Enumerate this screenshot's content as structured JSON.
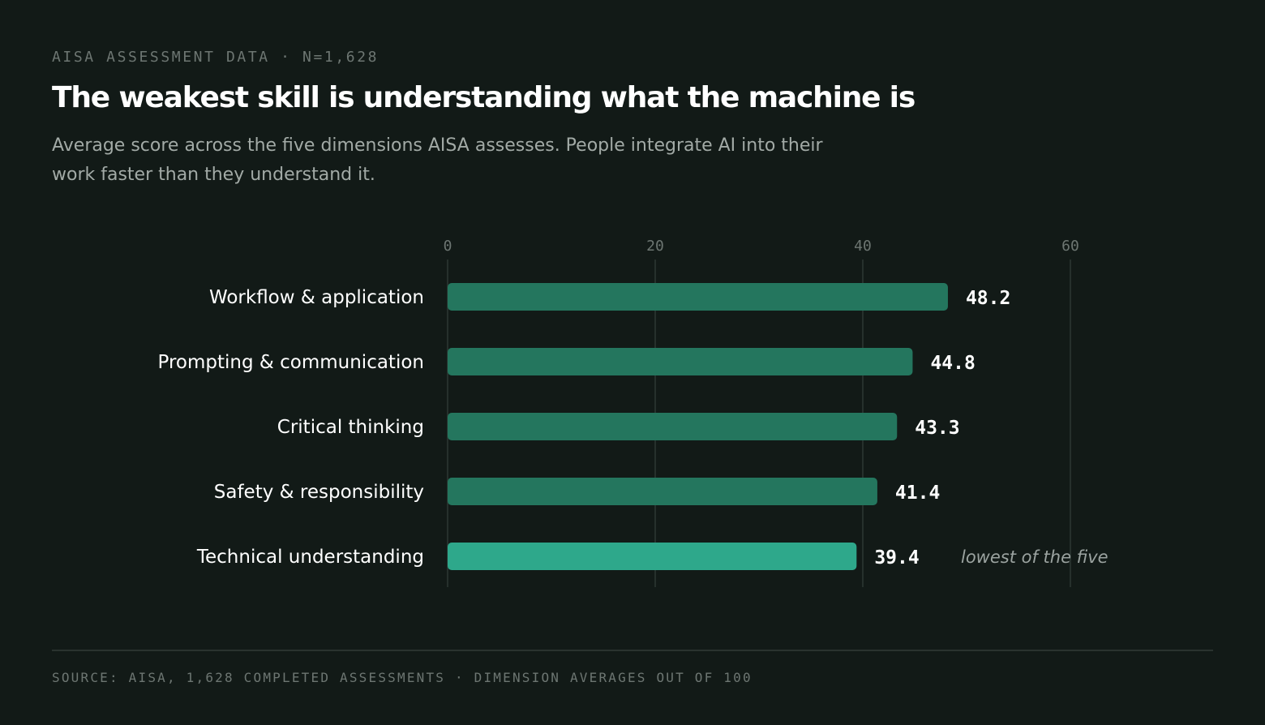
{
  "header": {
    "kicker": "AISA ASSESSMENT DATA · N=1,628",
    "title": "The weakest skill is understanding what the machine is",
    "subtitle": "Average score across the five dimensions AISA assesses. People integrate AI into their work faster than they understand it."
  },
  "chart_data": {
    "type": "bar",
    "orientation": "horizontal",
    "categories": [
      "Workflow & application",
      "Prompting & communication",
      "Critical thinking",
      "Safety & responsibility",
      "Technical understanding"
    ],
    "values": [
      48.2,
      44.8,
      43.3,
      41.4,
      39.4
    ],
    "value_labels": [
      "48.2",
      "44.8",
      "43.3",
      "41.4",
      "39.4"
    ],
    "xticks": [
      "0",
      "20",
      "40",
      "60"
    ],
    "xlim": [
      0,
      60
    ],
    "grid": true,
    "annotation": {
      "category": "Technical understanding",
      "text": "lowest of the five"
    },
    "colors": {
      "bar": "#24765e",
      "highlight": "#2ea88b",
      "grid": "#26302c",
      "tick": "#6d7672",
      "label": "#ffffff",
      "annotation": "#9ba3a0"
    }
  },
  "footer": {
    "source": "SOURCE: AISA, 1,628 COMPLETED ASSESSMENTS · DIMENSION AVERAGES OUT OF 100"
  }
}
